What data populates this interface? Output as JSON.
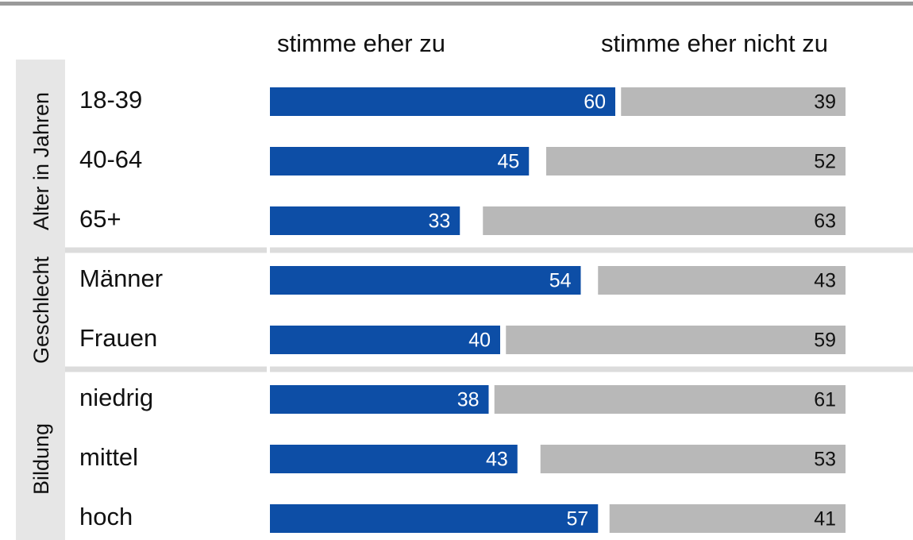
{
  "chart_data": {
    "type": "bar",
    "groups": [
      {
        "name": "Alter in Jahren",
        "categories": [
          "18-39",
          "40-64",
          "65+"
        ]
      },
      {
        "name": "Geschlecht",
        "categories": [
          "Männer",
          "Frauen"
        ]
      },
      {
        "name": "Bildung",
        "categories": [
          "niedrig",
          "mittel",
          "hoch"
        ]
      }
    ],
    "series": [
      {
        "name": "stimme eher zu",
        "color": "#0d4ea6",
        "values": [
          60,
          45,
          33,
          54,
          40,
          38,
          43,
          57
        ]
      },
      {
        "name": "stimme eher nicht zu",
        "color": "#b8b8b8",
        "values": [
          39,
          52,
          63,
          43,
          59,
          61,
          53,
          41
        ]
      }
    ],
    "xlim": [
      0,
      100
    ]
  }
}
